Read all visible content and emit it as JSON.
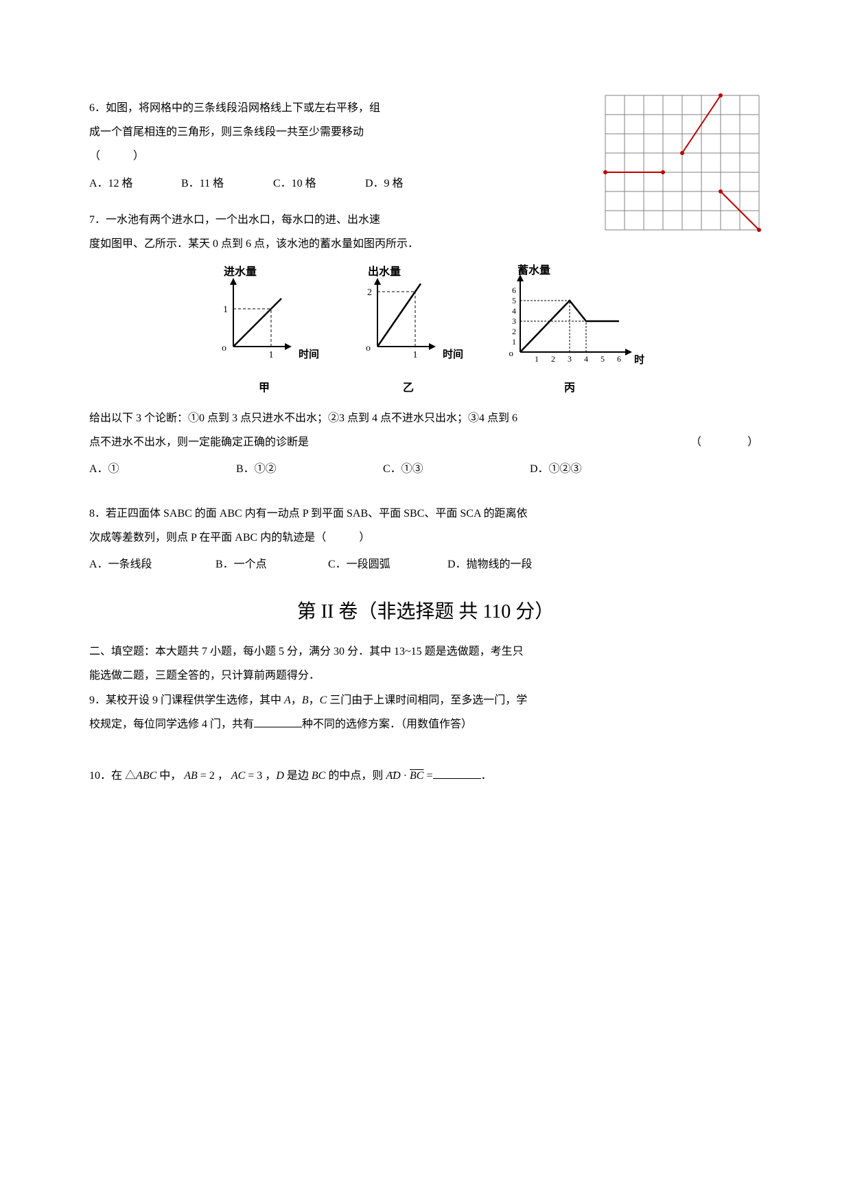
{
  "q6": {
    "text_p1": "6．如图，将网格中的三条线段沿网格线上下或左右平移，组",
    "text_p2": "成一个首尾相连的三角形，则三条线段一共至少需要移动",
    "text_p3": "（　　　）",
    "optA": "A．12 格",
    "optB": "B．11 格",
    "optC": "C．10 格",
    "optD": "D．9 格",
    "grid": {
      "rows": 7,
      "cols": 8,
      "cell": 28,
      "line_color": "#808080",
      "bg": "#ffffff",
      "seg_color": "#c00000",
      "seg_width": 2,
      "segments": [
        [
          4,
          3,
          6,
          0
        ],
        [
          0,
          4,
          3,
          4
        ],
        [
          6,
          5,
          8,
          7
        ]
      ]
    }
  },
  "q7": {
    "p1": "7．一水池有两个进水口，一个出水口，每水口的进、出水速",
    "p2": "度如图甲、乙所示．某天 0 点到 6 点，该水池的蓄水量如图丙所示．",
    "chart_labels": {
      "in": "进水量",
      "out": "出水量",
      "store": "蓄水量",
      "time": "时间"
    },
    "captions": {
      "a": "甲",
      "b": "乙",
      "c": "丙"
    },
    "chart_style": {
      "axis_color": "#000000",
      "axis_width": 2,
      "line_width": 2.5,
      "tick_fontsize": 14
    },
    "chartA": {
      "x": [
        0,
        1
      ],
      "y": [
        0,
        1
      ],
      "xtick": [
        1
      ],
      "ytick": [
        1
      ]
    },
    "chartB": {
      "x": [
        0,
        1
      ],
      "y": [
        0,
        2
      ],
      "xtick": [
        1
      ],
      "ytick": [
        2
      ]
    },
    "chartC": {
      "xtick": [
        1,
        2,
        3,
        4,
        5,
        6
      ],
      "ytick": [
        1,
        2,
        3,
        4,
        5,
        6
      ],
      "points": [
        [
          0,
          0
        ],
        [
          3,
          5
        ],
        [
          4,
          3
        ],
        [
          6,
          3
        ]
      ]
    },
    "after1": "给出以下 3 个论断：①0 点到 3 点只进水不出水；②3 点到 4 点不进水只出水；③4 点到 6",
    "after2_pre": "点不进水不出水，则一定能确定正确的诊断是",
    "after2_paren": "（　　　）",
    "optA": "A．①",
    "optB": "B．①②",
    "optC": "C．①③",
    "optD": "D．①②③"
  },
  "q8": {
    "p1": "8．若正四面体 SABC 的面 ABC 内有一动点 P 到平面 SAB、平面 SBC、平面 SCA 的距离依",
    "p2": "次成等差数列，则点 P 在平面 ABC 内的轨迹是（　　　）",
    "optA": "A．一条线段",
    "optB": "B．一个点",
    "optC": "C．一段圆弧",
    "optD": "D．抛物线的一段"
  },
  "heading": "第 II 卷（非选择题  共 110 分）",
  "fill_instr1": "二、填空题：本大题共 7 小题，每小题 5 分，满分 30 分．其中 13~15 题是选做题，考生只",
  "fill_instr2": "能选做二题，三题全答的，只计算前两题得分．",
  "q9": {
    "pre": "9．某校开设 9 门课程供学生选修，其中 ",
    "mid1": "A",
    "sep1": "，",
    "mid2": "B",
    "sep2": "，",
    "mid3": "C",
    "post1": " 三门由于上课时间相同，至多选一门，学",
    "line2_pre": "校规定，每位同学选修 4 门，共有",
    "line2_post": "种不同的选修方案．（用数值作答）"
  },
  "q10": {
    "pre": "10．在 △",
    "abc": "ABC",
    "mid1": " 中， ",
    "ab": "AB",
    "eq2": " = 2 ， ",
    "ac": "AC",
    "eq3": " = 3 ，",
    "d": "D",
    "mid2": " 是边 ",
    "bc": "BC",
    "mid3": " 的中点，则 ",
    "ad": "AD",
    "dot": " · ",
    "bc2": "BC",
    "eq": " =",
    "end": "．"
  }
}
